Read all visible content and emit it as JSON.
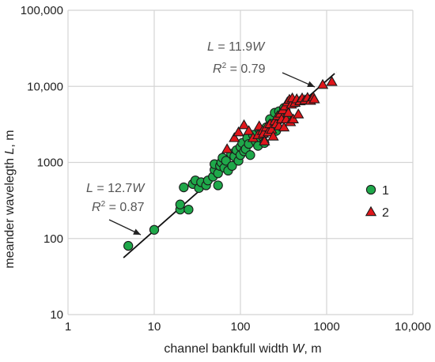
{
  "chart_data": {
    "type": "scatter",
    "x_scale": "log",
    "y_scale": "log",
    "xlabel": {
      "pre": "channel bankfull width ",
      "var": "W",
      "post": ", m"
    },
    "ylabel": {
      "pre": "meander wavelegth ",
      "var": "L",
      "post": ", m"
    },
    "xlim": [
      1,
      10000
    ],
    "ylim": [
      10,
      100000
    ],
    "x_ticks": [
      {
        "value": 1,
        "label": "1"
      },
      {
        "value": 10,
        "label": "10"
      },
      {
        "value": 100,
        "label": "100"
      },
      {
        "value": 1000,
        "label": "1000"
      },
      {
        "value": 10000,
        "label": "10,000"
      }
    ],
    "y_ticks": [
      {
        "value": 10,
        "label": "10"
      },
      {
        "value": 100,
        "label": "100"
      },
      {
        "value": 1000,
        "label": "1000"
      },
      {
        "value": 10000,
        "label": "10,000"
      },
      {
        "value": 100000,
        "label": "100,000"
      }
    ],
    "grid": true,
    "legend_position": "right",
    "series": [
      {
        "name": "1",
        "marker": "circle",
        "color": "#1fa84a",
        "points": [
          [
            5,
            80
          ],
          [
            10,
            130
          ],
          [
            20,
            240
          ],
          [
            20,
            280
          ],
          [
            22,
            470
          ],
          [
            25,
            240
          ],
          [
            28,
            520
          ],
          [
            30,
            580
          ],
          [
            33,
            460
          ],
          [
            35,
            550
          ],
          [
            40,
            500
          ],
          [
            42,
            580
          ],
          [
            48,
            650
          ],
          [
            50,
            800
          ],
          [
            50,
            950
          ],
          [
            55,
            500
          ],
          [
            55,
            720
          ],
          [
            58,
            900
          ],
          [
            60,
            1000
          ],
          [
            62,
            1150
          ],
          [
            65,
            850
          ],
          [
            68,
            1050
          ],
          [
            72,
            780
          ],
          [
            78,
            1300
          ],
          [
            80,
            900
          ],
          [
            85,
            1200
          ],
          [
            90,
            1450
          ],
          [
            95,
            1050
          ],
          [
            100,
            1250
          ],
          [
            100,
            1600
          ],
          [
            105,
            1800
          ],
          [
            110,
            1400
          ],
          [
            115,
            1500
          ],
          [
            120,
            2100
          ],
          [
            125,
            1750
          ],
          [
            130,
            1250
          ],
          [
            140,
            2300
          ],
          [
            150,
            1900
          ],
          [
            160,
            1650
          ],
          [
            170,
            2600
          ],
          [
            180,
            2200
          ],
          [
            190,
            1800
          ],
          [
            200,
            2900
          ],
          [
            220,
            3700
          ],
          [
            230,
            3200
          ],
          [
            250,
            4500
          ],
          [
            260,
            2600
          ],
          [
            270,
            3500
          ],
          [
            280,
            4700
          ],
          [
            300,
            4200
          ],
          [
            320,
            5200
          ],
          [
            350,
            3800
          ]
        ]
      },
      {
        "name": "2",
        "marker": "triangle",
        "color": "#e0161b",
        "points": [
          [
            70,
            1500
          ],
          [
            85,
            2100
          ],
          [
            95,
            2500
          ],
          [
            110,
            3100
          ],
          [
            125,
            2600
          ],
          [
            140,
            2100
          ],
          [
            160,
            2300
          ],
          [
            165,
            3000
          ],
          [
            180,
            2600
          ],
          [
            185,
            2400
          ],
          [
            190,
            1900
          ],
          [
            200,
            2900
          ],
          [
            210,
            2500
          ],
          [
            220,
            3200
          ],
          [
            230,
            2700
          ],
          [
            240,
            2200
          ],
          [
            250,
            3500
          ],
          [
            260,
            3200
          ],
          [
            270,
            4100
          ],
          [
            280,
            3000
          ],
          [
            290,
            4400
          ],
          [
            300,
            3700
          ],
          [
            310,
            4900
          ],
          [
            320,
            2900
          ],
          [
            330,
            5500
          ],
          [
            340,
            3700
          ],
          [
            350,
            6200
          ],
          [
            360,
            4500
          ],
          [
            370,
            6700
          ],
          [
            380,
            3400
          ],
          [
            390,
            5800
          ],
          [
            400,
            7000
          ],
          [
            410,
            3700
          ],
          [
            430,
            6100
          ],
          [
            450,
            6800
          ],
          [
            470,
            4300
          ],
          [
            490,
            6400
          ],
          [
            520,
            7000
          ],
          [
            560,
            6600
          ],
          [
            600,
            7100
          ],
          [
            650,
            6500
          ],
          [
            700,
            7200
          ],
          [
            720,
            6800
          ],
          [
            900,
            10500
          ],
          [
            1150,
            11500
          ]
        ]
      }
    ],
    "fits": [
      {
        "label_pre": "L",
        "label_post": " = 12.7",
        "label_var": "W",
        "r2": " = 0.87",
        "coef": 12.7,
        "solid": [
          4.4,
          40
        ],
        "dashed": [
          40,
          48
        ]
      },
      {
        "label_pre": "L",
        "label_post": " = 11.9",
        "label_var": "W",
        "r2": " = 0.79",
        "coef": 11.9,
        "solid": [
          450,
          1200
        ],
        "dashed": [
          1200,
          1300
        ]
      }
    ],
    "r2_symbol": {
      "base": "R",
      "sup": "2"
    }
  }
}
